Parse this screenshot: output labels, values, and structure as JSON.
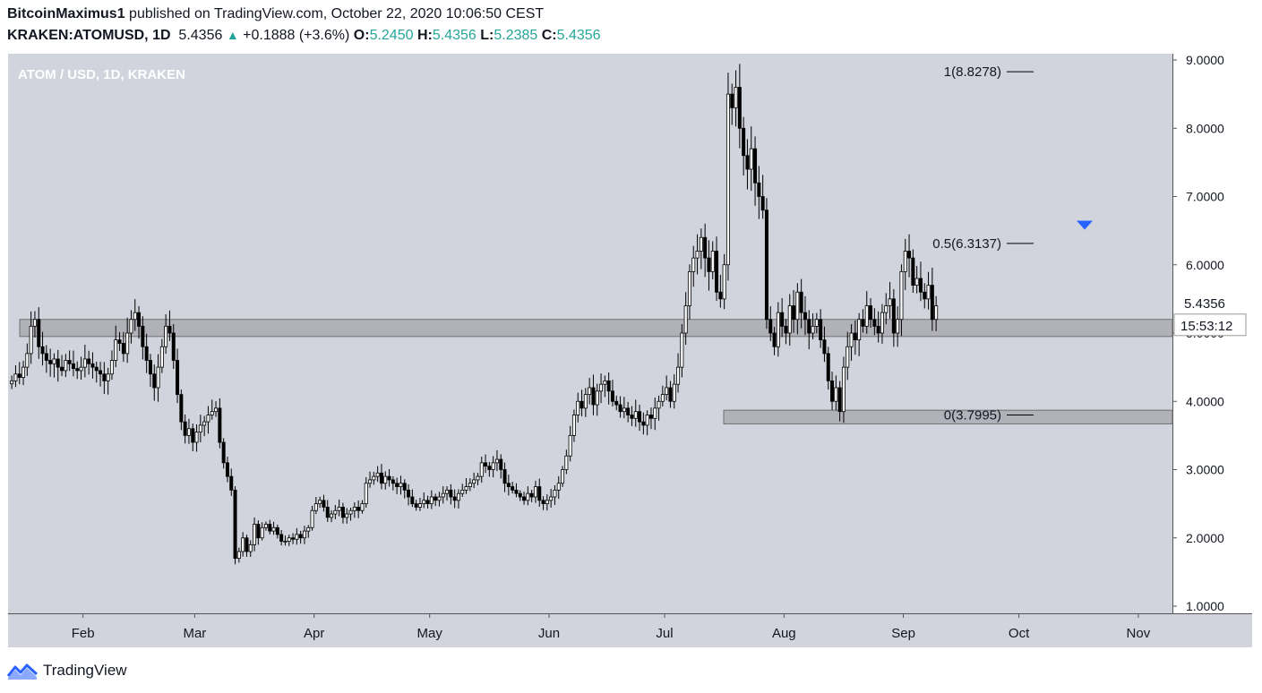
{
  "header": {
    "author": "BitcoinMaximus1",
    "published_text": "published on TradingView.com, October 22, 2020 10:06:50 CEST",
    "symbol": "KRAKEN:ATOMUSD, 1D",
    "last_price": "5.4356",
    "change": "+0.1888 (+3.6%)",
    "open_label": "O:",
    "open": "5.2450",
    "high_label": "H:",
    "high": "5.4356",
    "low_label": "L:",
    "low": "5.2385",
    "close_label": "C:",
    "close": "5.4356"
  },
  "chart_data": {
    "type": "candlestick",
    "title": "ATOM / USD, 1D, KRAKEN",
    "currency_label": "USD",
    "x_start": "2020-01-13",
    "y_axis_ticks": [
      "1.0000",
      "2.0000",
      "3.0000",
      "4.0000",
      "5.0000",
      "6.0000",
      "7.0000",
      "8.0000",
      "9.0000"
    ],
    "x_axis_ticks": [
      "Feb",
      "Mar",
      "Apr",
      "May",
      "Jun",
      "Jul",
      "Aug",
      "Sep",
      "Oct",
      "Nov"
    ],
    "ylim": [
      1.0,
      9.0
    ],
    "grid": false,
    "price_label": "5.4356",
    "countdown_label": "15:53:12",
    "support_zones": [
      {
        "low": 4.95,
        "high": 5.2
      },
      {
        "low": 3.67,
        "high": 3.87
      }
    ],
    "fib_levels": [
      {
        "label": "1(8.8278)",
        "value": 8.8278
      },
      {
        "label": "0.5(6.3137)",
        "value": 6.3137
      },
      {
        "label": "0(3.7995)",
        "value": 3.7995
      }
    ],
    "marker": {
      "type": "down-arrow",
      "price": 6.58
    },
    "closes": [
      4.3,
      4.4,
      4.35,
      4.5,
      4.7,
      5.1,
      5.2,
      4.8,
      4.7,
      4.6,
      4.55,
      4.62,
      4.5,
      4.45,
      4.6,
      4.55,
      4.48,
      4.45,
      4.5,
      4.62,
      4.55,
      4.5,
      4.45,
      4.4,
      4.3,
      4.4,
      4.6,
      4.9,
      4.85,
      4.7,
      5.0,
      5.2,
      5.3,
      5.1,
      4.8,
      4.6,
      4.4,
      4.2,
      4.5,
      4.8,
      5.1,
      5.0,
      4.6,
      4.1,
      3.7,
      3.5,
      3.6,
      3.4,
      3.55,
      3.65,
      3.7,
      3.8,
      3.85,
      3.9,
      3.4,
      3.1,
      2.9,
      2.7,
      1.7,
      1.8,
      2.0,
      1.8,
      1.9,
      2.2,
      2.0,
      2.15,
      2.2,
      2.1,
      2.15,
      2.05,
      1.95,
      1.95,
      2.0,
      1.98,
      2.05,
      2.0,
      2.1,
      2.15,
      2.4,
      2.5,
      2.55,
      2.45,
      2.3,
      2.35,
      2.4,
      2.45,
      2.3,
      2.35,
      2.4,
      2.45,
      2.4,
      2.5,
      2.8,
      2.85,
      2.9,
      2.95,
      2.8,
      2.9,
      2.85,
      2.8,
      2.75,
      2.8,
      2.7,
      2.6,
      2.5,
      2.45,
      2.5,
      2.55,
      2.5,
      2.6,
      2.55,
      2.6,
      2.65,
      2.7,
      2.6,
      2.55,
      2.65,
      2.7,
      2.75,
      2.8,
      2.85,
      2.9,
      3.1,
      3.05,
      3.0,
      3.1,
      3.15,
      3.0,
      2.8,
      2.75,
      2.7,
      2.65,
      2.6,
      2.55,
      2.65,
      2.6,
      2.75,
      2.55,
      2.5,
      2.55,
      2.6,
      2.7,
      2.8,
      3.0,
      3.2,
      3.5,
      3.8,
      4.0,
      3.9,
      4.1,
      4.2,
      3.95,
      4.15,
      4.25,
      4.3,
      4.15,
      4.0,
      3.95,
      3.85,
      3.9,
      3.8,
      3.75,
      3.85,
      3.7,
      3.65,
      3.8,
      3.75,
      3.9,
      4.0,
      4.1,
      4.2,
      4.0,
      4.25,
      4.5,
      5.0,
      5.4,
      5.9,
      6.1,
      6.2,
      6.4,
      6.1,
      5.9,
      6.2,
      5.6,
      5.5,
      6.0,
      8.5,
      8.3,
      8.6,
      8.0,
      7.6,
      7.4,
      7.7,
      7.2,
      7.0,
      6.8,
      5.2,
      5.0,
      4.8,
      5.3,
      5.1,
      5.0,
      5.4,
      5.2,
      5.6,
      5.3,
      5.2,
      5.0,
      5.1,
      5.2,
      4.9,
      4.7,
      4.3,
      4.0,
      4.2,
      3.85,
      4.5,
      4.8,
      5.0,
      4.9,
      5.2,
      5.1,
      5.4,
      5.2,
      5.1,
      5.0,
      5.3,
      5.4,
      5.5,
      5.0,
      5.2,
      5.9,
      6.2,
      6.1,
      5.7,
      5.8,
      5.6,
      5.5,
      5.7,
      5.2,
      5.4
    ]
  }
}
